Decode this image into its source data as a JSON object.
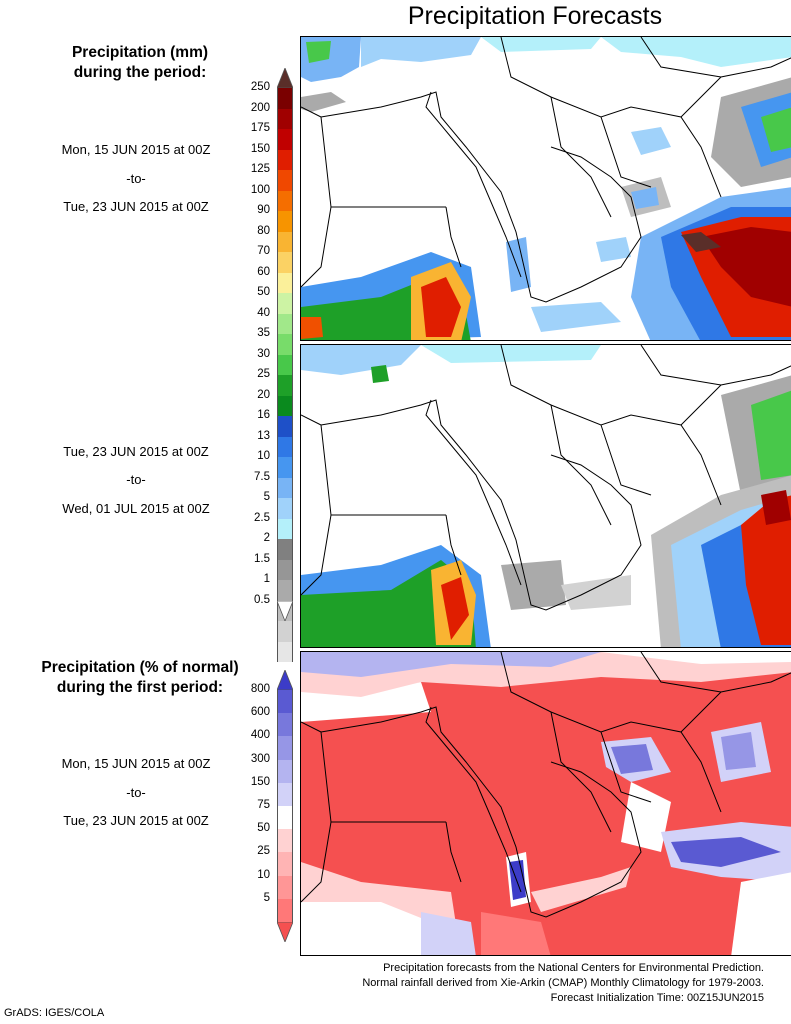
{
  "title": "Precipitation Forecasts",
  "precip_header": {
    "line1": "Precipitation (mm)",
    "line2": "during the period:"
  },
  "period1": {
    "start": "Mon, 15 JUN 2015 at 00Z",
    "sep": "-to-",
    "end": "Tue, 23 JUN 2015 at 00Z"
  },
  "period2": {
    "start": "Tue, 23 JUN 2015 at 00Z",
    "sep": "-to-",
    "end": "Wed, 01 JUL 2015 at 00Z"
  },
  "pct_header": {
    "line1": "Precipitation (% of normal)",
    "line2": "during the first period:"
  },
  "period3": {
    "start": "Mon, 15 JUN 2015 at 00Z",
    "sep": "-to-",
    "end": "Tue, 23 JUN 2015 at 00Z"
  },
  "precip_scale": [
    "250",
    "200",
    "175",
    "150",
    "125",
    "100",
    "90",
    "80",
    "70",
    "60",
    "50",
    "40",
    "35",
    "30",
    "25",
    "20",
    "16",
    "13",
    "10",
    "7.5",
    "5",
    "2.5",
    "2",
    "1.5",
    "1",
    "0.5"
  ],
  "precip_colors": [
    "#5a2e29",
    "#7a0000",
    "#a00000",
    "#c00000",
    "#e01e00",
    "#f04800",
    "#f56e00",
    "#f79400",
    "#f9b432",
    "#fbd264",
    "#fbf09a",
    "#cdf3a4",
    "#a1e88a",
    "#78dc6a",
    "#48c84a",
    "#1ea028",
    "#0a8a1e",
    "#1e50c8",
    "#2f78e6",
    "#4696f0",
    "#78b4f5",
    "#a0d2fa",
    "#b4f0fa",
    "#808080",
    "#969696",
    "#aaaaaa",
    "#bebebe",
    "#d2d2d2",
    "#e6e6e6"
  ],
  "pct_scale": [
    "800",
    "600",
    "400",
    "300",
    "150",
    "75",
    "50",
    "25",
    "10",
    "5"
  ],
  "pct_colors": [
    "#3c3cc8",
    "#5a5ad2",
    "#7878dc",
    "#9696e6",
    "#b4b4f0",
    "#d2d2f8",
    "#ffffff",
    "#ffd2d2",
    "#ffb4b4",
    "#ff9696",
    "#ff7878",
    "#f55050"
  ],
  "footer": {
    "line1": "Precipitation forecasts from the National Centers for Environmental Prediction.",
    "line2": "Normal rainfall derived from Xie-Arkin (CMAP) Monthly Climatology for 1979-2003.",
    "line3": "Forecast Initialization Time: 00Z15JUN2015"
  },
  "credit": "GrADS: IGES/COLA"
}
